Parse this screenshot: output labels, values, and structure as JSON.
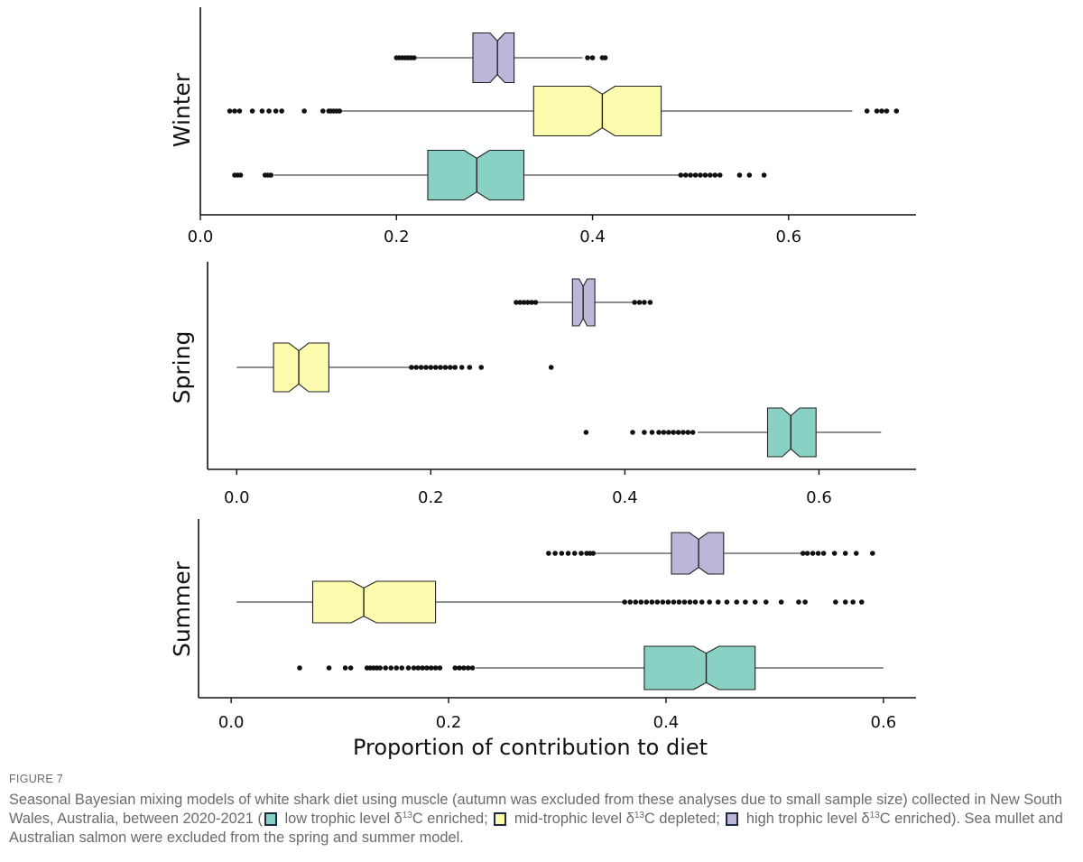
{
  "chart_data": [
    {
      "type": "box",
      "panel_label": "Winter",
      "xlim": [
        0,
        0.73
      ],
      "xticks": [
        0,
        0.2,
        0.4,
        0.6
      ],
      "xtick_labels": [
        "0.0",
        "0.2",
        "0.4",
        "0.6"
      ],
      "boxes": [
        {
          "group": "high",
          "whisker_low": 0.22,
          "q1": 0.278,
          "median": 0.303,
          "q3": 0.32,
          "whisker_high": 0.39,
          "outliers": [
            0.2,
            0.203,
            0.206,
            0.209,
            0.212,
            0.215,
            0.218,
            0.395,
            0.4,
            0.41,
            0.413
          ]
        },
        {
          "group": "mid",
          "whisker_low": 0.143,
          "q1": 0.34,
          "median": 0.41,
          "q3": 0.47,
          "whisker_high": 0.665,
          "outliers": [
            0.03,
            0.035,
            0.04,
            0.053,
            0.063,
            0.07,
            0.077,
            0.083,
            0.106,
            0.125,
            0.131,
            0.133,
            0.136,
            0.139,
            0.142,
            0.68,
            0.69,
            0.695,
            0.7,
            0.71
          ]
        },
        {
          "group": "low",
          "whisker_low": 0.075,
          "q1": 0.232,
          "median": 0.282,
          "q3": 0.33,
          "whisker_high": 0.49,
          "outliers": [
            0.035,
            0.038,
            0.041,
            0.066,
            0.069,
            0.072,
            0.49,
            0.495,
            0.5,
            0.505,
            0.51,
            0.515,
            0.52,
            0.525,
            0.53,
            0.55,
            0.56,
            0.575
          ]
        }
      ]
    },
    {
      "type": "box",
      "panel_label": "Spring",
      "xlim": [
        -0.03,
        0.7
      ],
      "xticks": [
        0,
        0.2,
        0.4,
        0.6
      ],
      "xtick_labels": [
        "0.0",
        "0.2",
        "0.4",
        "0.6"
      ],
      "boxes": [
        {
          "group": "high",
          "whisker_low": 0.31,
          "q1": 0.346,
          "median": 0.357,
          "q3": 0.369,
          "whisker_high": 0.408,
          "outliers": [
            0.288,
            0.292,
            0.296,
            0.3,
            0.304,
            0.308,
            0.41,
            0.415,
            0.42,
            0.426
          ]
        },
        {
          "group": "mid",
          "whisker_low": 0.0,
          "q1": 0.038,
          "median": 0.064,
          "q3": 0.095,
          "whisker_high": 0.18,
          "outliers": [
            0.18,
            0.185,
            0.19,
            0.195,
            0.2,
            0.205,
            0.21,
            0.215,
            0.22,
            0.225,
            0.232,
            0.24,
            0.252,
            0.324
          ]
        },
        {
          "group": "low",
          "whisker_low": 0.475,
          "q1": 0.547,
          "median": 0.571,
          "q3": 0.597,
          "whisker_high": 0.664,
          "outliers": [
            0.36,
            0.408,
            0.42,
            0.428,
            0.435,
            0.44,
            0.445,
            0.45,
            0.455,
            0.46,
            0.465,
            0.47
          ]
        }
      ]
    },
    {
      "type": "box",
      "panel_label": "Summer",
      "xlim": [
        -0.03,
        0.63
      ],
      "xticks": [
        0,
        0.2,
        0.4,
        0.6
      ],
      "xtick_labels": [
        "0.0",
        "0.2",
        "0.4",
        "0.6"
      ],
      "xlabel": "Proportion of contribution to diet",
      "boxes": [
        {
          "group": "high",
          "whisker_low": 0.335,
          "q1": 0.405,
          "median": 0.43,
          "q3": 0.453,
          "whisker_high": 0.525,
          "outliers": [
            0.292,
            0.298,
            0.304,
            0.31,
            0.316,
            0.322,
            0.327,
            0.33,
            0.333,
            0.526,
            0.53,
            0.535,
            0.54,
            0.545,
            0.555,
            0.565,
            0.575,
            0.59
          ]
        },
        {
          "group": "mid",
          "whisker_low": 0.005,
          "q1": 0.075,
          "median": 0.122,
          "q3": 0.188,
          "whisker_high": 0.36,
          "outliers": [
            0.362,
            0.367,
            0.372,
            0.377,
            0.382,
            0.387,
            0.392,
            0.397,
            0.402,
            0.407,
            0.412,
            0.417,
            0.422,
            0.427,
            0.433,
            0.44,
            0.448,
            0.456,
            0.465,
            0.473,
            0.482,
            0.492,
            0.506,
            0.522,
            0.528,
            0.556,
            0.565,
            0.572,
            0.58
          ]
        },
        {
          "group": "low",
          "whisker_low": 0.225,
          "q1": 0.38,
          "median": 0.437,
          "q3": 0.482,
          "whisker_high": 0.6,
          "outliers": [
            0.063,
            0.09,
            0.105,
            0.11,
            0.125,
            0.128,
            0.131,
            0.134,
            0.137,
            0.142,
            0.147,
            0.152,
            0.157,
            0.163,
            0.168,
            0.172,
            0.176,
            0.18,
            0.184,
            0.188,
            0.192,
            0.206,
            0.21,
            0.214,
            0.218,
            0.222
          ]
        }
      ]
    }
  ],
  "colors": {
    "low": "#88d1c4",
    "mid": "#fdfbad",
    "high": "#bdb6d9",
    "stroke": "#222222"
  },
  "caption": {
    "figure_label": "FIGURE 7",
    "text_1": "Seasonal Bayesian mixing models of white shark diet using muscle (autumn was excluded from these analyses due to small sample size) collected in New South Wales, Australia, between 2020-2021 (",
    "legend_low": " low trophic level δ",
    "legend_low_sup": "13",
    "legend_low_end": "C enriched; ",
    "legend_mid": " mid-trophic level δ",
    "legend_mid_sup": "13",
    "legend_mid_end": "C depleted; ",
    "legend_high": " high trophic level δ",
    "legend_high_sup": "13",
    "legend_high_end": "C enriched). Sea mullet and Australian salmon were excluded from the spring and summer model."
  }
}
